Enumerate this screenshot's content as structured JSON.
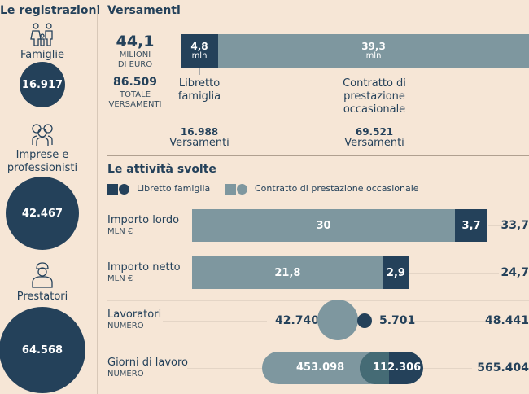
{
  "left": {
    "title": "Le registrazioni",
    "groups": [
      {
        "label": "Famiglie",
        "value": "16.917",
        "icon": "family-icon"
      },
      {
        "label": "Imprese e professionisti",
        "value": "42.467",
        "icon": "business-group-icon"
      },
      {
        "label": "Prestatori",
        "value": "64.568",
        "icon": "worker-icon"
      }
    ]
  },
  "versamenti": {
    "title": "Versamenti",
    "total_amount": "44,1",
    "total_amount_unit_1": "MILIONI",
    "total_amount_unit_2": "DI EURO",
    "total_count": "86.509",
    "total_count_unit_1": "TOTALE",
    "total_count_unit_2": "VERSAMENTI",
    "libretto": {
      "value": "4,8",
      "unit": "mln",
      "label_1": "Libretto",
      "label_2": "famiglia",
      "count": "16.988",
      "count_label": "Versamenti"
    },
    "contratto": {
      "value": "39,3",
      "unit": "mln",
      "label_1": "Contratto di",
      "label_2": "prestazione",
      "label_3": "occasionale",
      "count": "69.521",
      "count_label": "Versamenti"
    }
  },
  "chart_data": {
    "type": "bar",
    "title": "Le attività svolte",
    "legend": [
      "Libretto famiglia",
      "Contratto di prestazione occasionale"
    ],
    "colors": {
      "libretto": "#24415a",
      "contratto": "#7e979f"
    },
    "rows": [
      {
        "label": "Importo lordo",
        "unit": "MLN €",
        "contratto": 30,
        "libretto": 3.7,
        "total": 33.7,
        "contratto_label": "30",
        "libretto_label": "3,7",
        "total_label": "33,7"
      },
      {
        "label": "Importo netto",
        "unit": "MLN €",
        "contratto": 21.8,
        "libretto": 2.9,
        "total": 24.7,
        "contratto_label": "21,8",
        "libretto_label": "2,9",
        "total_label": "24,7"
      },
      {
        "label": "Lavoratori",
        "unit": "NUMERO",
        "contratto": 42740,
        "libretto": 5701,
        "total": 48441,
        "contratto_label": "42.740",
        "libretto_label": "5.701",
        "total_label": "48.441"
      },
      {
        "label": "Giorni di lavoro",
        "unit": "NUMERO",
        "contratto": 453098,
        "libretto": 112306,
        "total": 565404,
        "contratto_label": "453.098",
        "libretto_label": "112.306",
        "total_label": "565.404"
      }
    ]
  }
}
